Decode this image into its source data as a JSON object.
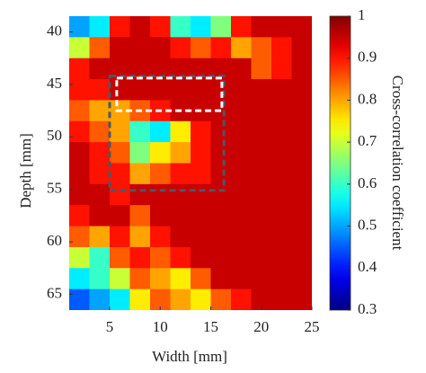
{
  "chart_data": {
    "type": "heatmap",
    "colormap": "jet",
    "xlabel": "Width [mm]",
    "ylabel": "Depth [mm]",
    "colorbar_label": "Cross-correlation coefficient",
    "xlim": [
      1,
      25
    ],
    "ylim": [
      38.5,
      66.5
    ],
    "y_inverted": true,
    "xticks": [
      5,
      10,
      15,
      20,
      25
    ],
    "yticks": [
      40,
      45,
      50,
      55,
      60,
      65
    ],
    "clim": [
      0.3,
      1
    ],
    "cticks": [
      0.3,
      0.4,
      0.5,
      0.6,
      0.7,
      0.8,
      0.9,
      1
    ],
    "cell_size": [
      2,
      2
    ],
    "x": [
      2,
      4,
      6,
      8,
      10,
      12,
      14,
      16,
      18,
      20,
      22,
      24
    ],
    "y": [
      39.5,
      41.5,
      43.5,
      45.5,
      47.5,
      49.5,
      51.5,
      53.5,
      55.5,
      57.5,
      59.5,
      61.5,
      63.5,
      65.5
    ],
    "z": [
      [
        0.5,
        0.55,
        0.9,
        0.95,
        0.9,
        0.6,
        0.55,
        0.65,
        0.9,
        0.95,
        0.95,
        0.95
      ],
      [
        0.7,
        0.85,
        0.95,
        0.95,
        0.95,
        0.9,
        0.85,
        0.9,
        0.8,
        0.85,
        0.9,
        0.95
      ],
      [
        0.9,
        0.95,
        0.95,
        0.95,
        0.95,
        0.95,
        0.95,
        0.95,
        0.95,
        0.85,
        0.9,
        0.95
      ],
      [
        0.9,
        0.9,
        0.95,
        0.95,
        0.95,
        0.95,
        0.95,
        0.95,
        0.95,
        0.95,
        0.95,
        0.95
      ],
      [
        0.85,
        0.8,
        0.8,
        0.85,
        0.9,
        0.95,
        0.95,
        0.95,
        0.95,
        0.95,
        0.95,
        0.95
      ],
      [
        0.9,
        0.85,
        0.8,
        0.6,
        0.55,
        0.75,
        0.9,
        0.95,
        0.95,
        0.95,
        0.95,
        0.95
      ],
      [
        0.95,
        0.9,
        0.85,
        0.65,
        0.75,
        0.8,
        0.9,
        0.95,
        0.95,
        0.95,
        0.95,
        0.95
      ],
      [
        0.95,
        0.9,
        0.9,
        0.8,
        0.85,
        0.9,
        0.9,
        0.95,
        0.95,
        0.95,
        0.95,
        0.95
      ],
      [
        0.95,
        0.95,
        0.9,
        0.95,
        0.95,
        0.95,
        0.95,
        0.95,
        0.95,
        0.95,
        0.95,
        0.95
      ],
      [
        0.9,
        0.95,
        0.95,
        0.85,
        0.95,
        0.95,
        0.95,
        0.95,
        0.95,
        0.95,
        0.95,
        0.95
      ],
      [
        0.85,
        0.8,
        0.9,
        0.8,
        0.9,
        0.95,
        0.95,
        0.95,
        0.95,
        0.95,
        0.95,
        0.95
      ],
      [
        0.7,
        0.6,
        0.85,
        0.9,
        0.85,
        0.9,
        0.95,
        0.95,
        0.95,
        0.95,
        0.95,
        0.95
      ],
      [
        0.55,
        0.6,
        0.7,
        0.85,
        0.8,
        0.75,
        0.85,
        0.95,
        0.95,
        0.95,
        0.95,
        0.95
      ],
      [
        0.45,
        0.5,
        0.55,
        0.75,
        0.85,
        0.8,
        0.75,
        0.85,
        0.9,
        0.95,
        0.95,
        0.95
      ]
    ],
    "rectangles": [
      {
        "x": [
          5,
          16.3
        ],
        "y": [
          44.2,
          55.1
        ],
        "color": "#4a5868"
      },
      {
        "x": [
          5.7,
          16.1
        ],
        "y": [
          44.4,
          47.5
        ],
        "color": "#ffffff"
      }
    ]
  }
}
